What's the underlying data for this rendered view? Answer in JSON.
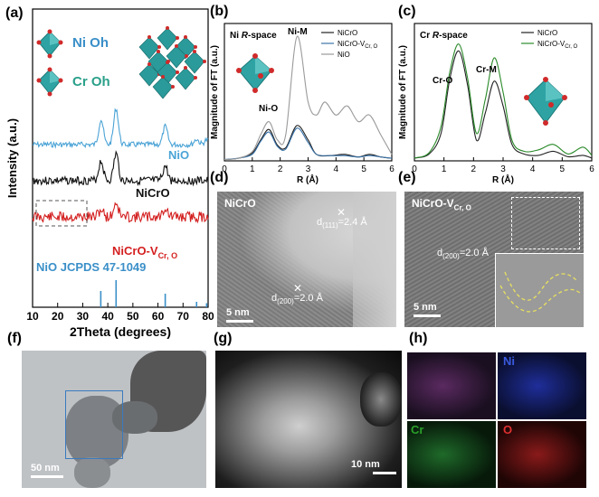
{
  "panels": {
    "a": {
      "label": "(a)",
      "legend_ni": "Ni Oh",
      "legend_cr": "Cr Oh",
      "series_nio": "NiO",
      "series_nicro": "NiCrO",
      "series_vac": "NiCrO-V",
      "series_vac_sub": "Cr, O",
      "ref_label": "NiO JCPDS 47-1049",
      "ylabel": "Intensity (a.u.)",
      "xlabel": "2Theta (degrees)",
      "xticks": [
        "10",
        "20",
        "30",
        "40",
        "50",
        "60",
        "70",
        "80"
      ]
    },
    "b": {
      "label": "(b)",
      "title": "Ni R-space",
      "ylabel": "Magnitude of FT (a.u.)",
      "xlabel": "R (Å)",
      "xticks": [
        "0",
        "1",
        "2",
        "3",
        "4",
        "5",
        "6"
      ],
      "ann_nim": "Ni-M",
      "ann_nio": "Ni-O",
      "legend": [
        "NiCrO",
        "NiCrO-V",
        "NiO"
      ],
      "legend_sub": "Cr, O",
      "colors": [
        "#222222",
        "#3a73a8",
        "#9a9a9a"
      ]
    },
    "c": {
      "label": "(c)",
      "title": "Cr R-space",
      "ylabel": "Magnitude of FT (a.u.)",
      "xlabel": "R (Å)",
      "xticks": [
        "0",
        "1",
        "2",
        "3",
        "4",
        "5",
        "6"
      ],
      "ann_cro": "Cr-O",
      "ann_crm": "Cr-M",
      "legend": [
        "NiCrO",
        "NiCrO-V"
      ],
      "legend_sub": "Cr, O",
      "colors": [
        "#222222",
        "#2a8a2a"
      ]
    },
    "d": {
      "label": "(d)",
      "name": "NiCrO",
      "d111": "d",
      "d111_sub": "(111)",
      "d111_val": "=2.4 Å",
      "d200": "d",
      "d200_sub": "(200)",
      "d200_val": "=2.0 Å",
      "scale": "5 nm"
    },
    "e": {
      "label": "(e)",
      "name": "NiCrO-V",
      "name_sub": "Cr, O",
      "d200": "d",
      "d200_sub": "(200)",
      "d200_val": "=2.0 Å",
      "scale": "5 nm"
    },
    "f": {
      "label": "(f)",
      "scale": "50 nm"
    },
    "g": {
      "label": "(g)",
      "scale": "10 nm"
    },
    "h": {
      "label": "(h)",
      "ni": "Ni",
      "cr": "Cr",
      "o": "O"
    }
  },
  "colors": {
    "nio_xrd": "#4aa3d6",
    "nicro_xrd": "#111111",
    "vac_xrd": "#d42020",
    "ref": "#3a8fc8",
    "octa_face": "#2fa3a3",
    "octa_o": "#d02a2a"
  },
  "chart_data": [
    {
      "panel": "a",
      "type": "line",
      "xlabel": "2Theta (degrees)",
      "ylabel": "Intensity (a.u.)",
      "xlim": [
        10,
        80
      ],
      "series": [
        {
          "name": "NiO",
          "x": [
            37.3,
            43.3,
            62.9,
            75.4,
            79.4
          ],
          "peaks": true
        },
        {
          "name": "NiCrO",
          "x": [
            37.3,
            43.3,
            62.9
          ],
          "peaks": true
        },
        {
          "name": "NiCrO-V",
          "x": [
            37.3,
            43.3,
            62.9
          ],
          "peaks": true
        }
      ],
      "reference": {
        "name": "NiO JCPDS 47-1049",
        "x": [
          37.2,
          43.3,
          62.9,
          75.4,
          79.4
        ],
        "rel_intensity": [
          0.6,
          1.0,
          0.5,
          0.2,
          0.15
        ]
      }
    },
    {
      "panel": "b",
      "type": "line",
      "title": "Ni R-space",
      "xlabel": "R (Å)",
      "ylabel": "Magnitude of FT (a.u.)",
      "xlim": [
        0,
        6
      ],
      "series": [
        {
          "name": "NiCrO",
          "x": [
            0,
            0.5,
            1.0,
            1.3,
            1.6,
            1.9,
            2.2,
            2.6,
            3.0,
            3.3,
            3.8,
            4.3,
            4.8,
            5.2,
            5.6,
            6.0
          ],
          "y": [
            0.01,
            0.02,
            0.06,
            0.16,
            0.24,
            0.12,
            0.1,
            0.27,
            0.16,
            0.05,
            0.04,
            0.05,
            0.03,
            0.05,
            0.03,
            0.02
          ]
        },
        {
          "name": "NiCrO-V",
          "x": [
            0,
            0.5,
            1.0,
            1.3,
            1.6,
            1.9,
            2.2,
            2.6,
            3.0,
            3.3,
            3.8,
            4.3,
            4.8,
            5.2,
            5.6,
            6.0
          ],
          "y": [
            0.01,
            0.02,
            0.05,
            0.15,
            0.22,
            0.11,
            0.09,
            0.25,
            0.14,
            0.05,
            0.04,
            0.04,
            0.03,
            0.04,
            0.03,
            0.02
          ]
        },
        {
          "name": "NiO",
          "x": [
            0,
            0.5,
            1.0,
            1.3,
            1.6,
            1.9,
            2.2,
            2.6,
            3.0,
            3.3,
            3.6,
            4.0,
            4.4,
            4.8,
            5.2,
            5.6,
            6.0
          ],
          "y": [
            0.01,
            0.02,
            0.07,
            0.2,
            0.3,
            0.16,
            0.2,
            0.95,
            0.45,
            0.35,
            0.45,
            0.35,
            0.42,
            0.3,
            0.35,
            0.2,
            0.05
          ]
        }
      ]
    },
    {
      "panel": "c",
      "type": "line",
      "title": "Cr R-space",
      "xlabel": "R (Å)",
      "ylabel": "Magnitude of FT (a.u.)",
      "xlim": [
        0,
        6
      ],
      "series": [
        {
          "name": "NiCrO",
          "x": [
            0,
            0.5,
            0.9,
            1.2,
            1.5,
            1.8,
            2.1,
            2.4,
            2.7,
            3.0,
            3.3,
            3.7,
            4.2,
            4.7,
            5.2,
            5.7,
            6.0
          ],
          "y": [
            0.02,
            0.05,
            0.2,
            0.6,
            0.8,
            0.55,
            0.15,
            0.35,
            0.58,
            0.4,
            0.12,
            0.05,
            0.04,
            0.07,
            0.03,
            0.04,
            0.02
          ]
        },
        {
          "name": "NiCrO-V",
          "x": [
            0,
            0.5,
            0.9,
            1.2,
            1.5,
            1.8,
            2.1,
            2.4,
            2.7,
            3.0,
            3.3,
            3.7,
            4.2,
            4.7,
            5.2,
            5.7,
            6.0
          ],
          "y": [
            0.02,
            0.06,
            0.25,
            0.65,
            0.85,
            0.6,
            0.2,
            0.45,
            0.75,
            0.5,
            0.15,
            0.07,
            0.08,
            0.12,
            0.05,
            0.1,
            0.04
          ]
        }
      ]
    }
  ]
}
